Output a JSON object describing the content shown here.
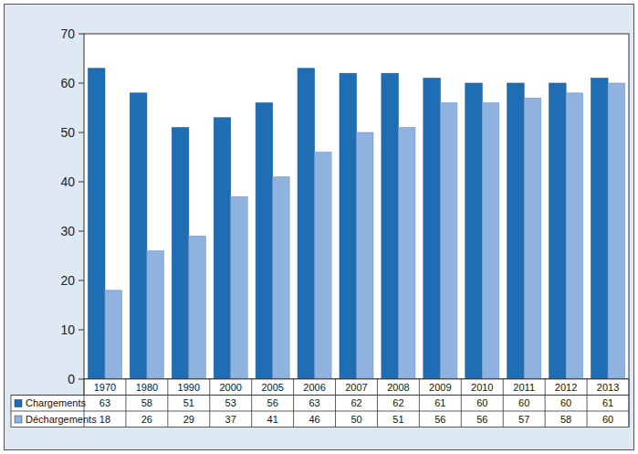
{
  "chart_data": {
    "type": "bar",
    "categories": [
      "1970",
      "1980",
      "1990",
      "2000",
      "2005",
      "2006",
      "2007",
      "2008",
      "2009",
      "2010",
      "2011",
      "2012",
      "2013"
    ],
    "series": [
      {
        "name": "Chargements",
        "color": "#1f6db3",
        "values": [
          63,
          58,
          51,
          53,
          56,
          63,
          62,
          62,
          61,
          60,
          60,
          60,
          61
        ]
      },
      {
        "name": "Déchargements",
        "color": "#8fb3de",
        "values": [
          18,
          26,
          29,
          37,
          41,
          46,
          50,
          51,
          56,
          56,
          57,
          58,
          60
        ]
      }
    ],
    "ylim": [
      0,
      70
    ],
    "yticks": [
      0,
      10,
      20,
      30,
      40,
      50,
      60,
      70
    ],
    "grid": false
  }
}
